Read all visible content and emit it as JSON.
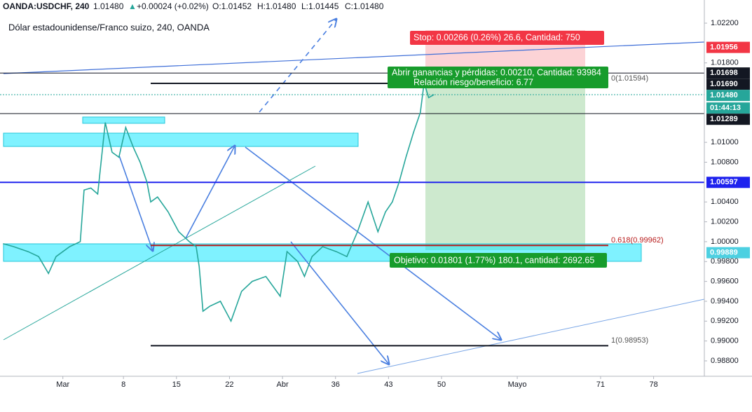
{
  "chart_data": {
    "type": "line",
    "title": "OANDA:USDCHF, 240",
    "header_values": {
      "last": {
        "value": 1.0148,
        "label": "1.01480"
      },
      "change": "▲",
      "change_text": "+0.00024 (+0.02%)",
      "open": "O:1.01452",
      "high": "H:1.01480",
      "low": "L:1.01445",
      "close": "C:1.01480"
    },
    "subtitle": "Dólar estadounidense/Franco suizo, 240, OANDA",
    "series": [
      {
        "name": "USDCHF",
        "color": "#26a69a",
        "x": [
          -7.9,
          -6.5,
          -4.6,
          -3.2,
          -1.9,
          -0.9,
          0.9,
          2.3,
          2.8,
          3.7,
          4.6,
          5.6,
          6.5,
          7.4,
          8.3,
          9.3,
          10.2,
          11.1,
          11.6,
          12.5,
          13.9,
          15.3,
          16.7,
          17.6,
          18.0,
          18.5,
          19.4,
          20.8,
          22.2,
          23.6,
          25.0,
          26.8,
          28.7,
          29.6,
          31.0,
          31.9,
          32.9,
          34.3,
          36.1,
          37.5,
          38.9,
          40.3,
          41.6,
          42.6,
          43.5,
          44.4,
          45.3,
          46.3,
          47.2,
          47.7,
          48.3,
          49.0
        ],
        "values": [
          0.9998,
          0.9995,
          0.999,
          0.9985,
          0.9968,
          0.9985,
          0.9995,
          1.0,
          1.0052,
          1.0054,
          1.0048,
          1.012,
          1.009,
          1.0085,
          1.0115,
          1.0095,
          1.008,
          1.006,
          1.004,
          1.0045,
          1.003,
          1.001,
          1.0,
          0.9995,
          0.9975,
          0.993,
          0.9935,
          0.994,
          0.992,
          0.995,
          0.996,
          0.9965,
          0.9945,
          0.999,
          0.998,
          0.9965,
          0.9985,
          0.9995,
          0.999,
          0.9985,
          1.001,
          1.004,
          1.001,
          1.003,
          1.004,
          1.006,
          1.0085,
          1.011,
          1.013,
          1.016,
          1.0145,
          1.0148
        ]
      }
    ],
    "xlim": [
      -8.3,
      84.7
    ],
    "xticks": [
      {
        "value": 0,
        "label": "Mar"
      },
      8,
      15,
      22,
      {
        "value": 29,
        "label": "Abr"
      },
      36,
      43,
      50,
      {
        "value": 60,
        "label": "Mayo"
      },
      71,
      78
    ],
    "ylim": [
      0.98645,
      1.02433
    ],
    "yticks": [
      {
        "value": 1.022,
        "label": "1.02200"
      },
      {
        "value": 1.018,
        "label": "1.01800"
      },
      {
        "value": 1.01,
        "label": "1.01000"
      },
      {
        "value": 1.008,
        "label": "1.00800"
      },
      {
        "value": 1.004,
        "label": "1.00400"
      },
      {
        "value": 1.002,
        "label": "1.00200"
      },
      {
        "value": 1.0,
        "label": "1.00000"
      },
      {
        "value": 0.998,
        "label": "0.99800"
      },
      {
        "value": 0.996,
        "label": "0.99600"
      },
      {
        "value": 0.994,
        "label": "0.99400"
      },
      {
        "value": 0.992,
        "label": "0.99200"
      },
      {
        "value": 0.99,
        "label": "0.99000"
      },
      {
        "value": 0.988,
        "label": "0.98800"
      }
    ],
    "price_tags": [
      {
        "value": 1.01956,
        "label": "1.01956",
        "color": "#f23645"
      },
      {
        "value": 1.01698,
        "label": "1.01698",
        "color": "#131722"
      },
      {
        "value": 1.0169,
        "label": "1.01690",
        "color": "#131722"
      },
      {
        "value": 1.0148,
        "label": "1.01480",
        "color": "#26a69a"
      },
      {
        "value": 1.01289,
        "label": "1.01289",
        "color": "#131722"
      },
      {
        "value": 1.00597,
        "label": "1.00597",
        "color": "#1e22ee"
      },
      {
        "value": 0.99889,
        "label": "0.99889",
        "color": "#4dd0e1"
      }
    ],
    "countdown": "01:44:13",
    "horizontal_lines": [
      {
        "value": 1.01698,
        "color": "#131722"
      },
      {
        "value": 1.01289,
        "color": "#131722"
      },
      {
        "value": 1.00597,
        "color": "#1e22ee"
      }
    ],
    "fib_levels": [
      {
        "value": 1.01594,
        "label": "0(1.01594)",
        "color": "#131722"
      },
      {
        "value": 0.99962,
        "label": "0.618(0.99962)",
        "color": "#b71c1c"
      },
      {
        "value": 0.98953,
        "label": "1(0.98953)",
        "color": "#131722"
      }
    ],
    "annotations": {
      "stop": "Stop: 0.00266 (0.26%) 26.6, Cantidad: 750",
      "open_pnl": "Abrir ganancias y pérdidas: 0.00210, Cantidad: 93984",
      "risk_reward": "Relación riesgo/beneficio: 6.77",
      "target": "Objetivo: 0.01801 (1.77%) 180.1, cantidad: 2692.65"
    }
  }
}
